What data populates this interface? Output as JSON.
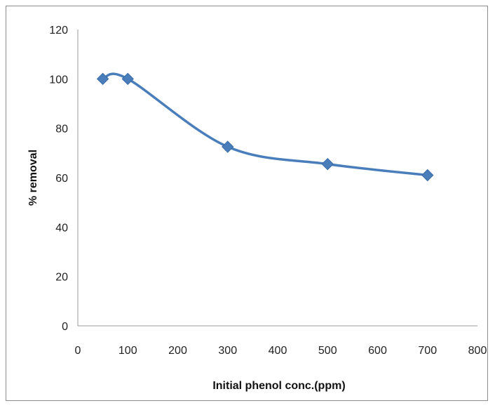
{
  "chart_data": {
    "type": "line",
    "title": "",
    "xlabel": "Initial phenol conc.(ppm)",
    "ylabel": "% removal",
    "xlim": [
      0,
      800
    ],
    "ylim": [
      0,
      120
    ],
    "xticks": [
      "0",
      "100",
      "200",
      "300",
      "400",
      "500",
      "600",
      "700",
      "800"
    ],
    "yticks": [
      "0",
      "20",
      "40",
      "60",
      "80",
      "100",
      "120"
    ],
    "grid": false,
    "legend": "none",
    "smooth": true,
    "marker": "diamond",
    "series": [
      {
        "color": "#4a7ebb",
        "x": [
          50,
          100,
          300,
          500,
          700
        ],
        "y": [
          100,
          100,
          72.5,
          65.5,
          61
        ]
      }
    ]
  }
}
